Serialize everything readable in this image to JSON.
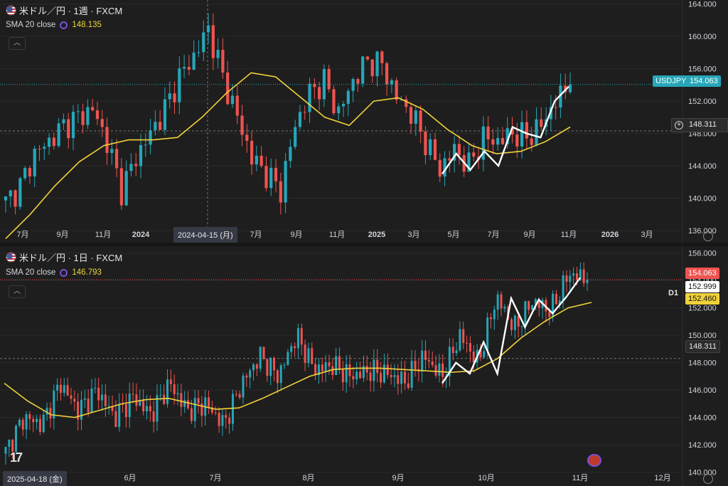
{
  "top_chart": {
    "title": "米ドル／円 · 1週 · FXCM",
    "indicator_label": "SMA 20 close",
    "indicator_value": "148.135",
    "symbol_tag": "USDJPY",
    "last_price": "154.063",
    "crosshair_price": "148.311",
    "crosshair_date": "2024-04-15 (月)"
  },
  "bottom_chart": {
    "title": "米ドル／円 · 1日 · FXCM",
    "indicator_label": "SMA 20 close",
    "indicator_value": "146.793",
    "last_price": "154.063",
    "prev_price": "152.999",
    "sma_price": "152.460",
    "crosshair_price": "148.311",
    "crosshair_date": "2025-04-18 (金)",
    "timeframe_label": "D1"
  },
  "colors": {
    "up": "#26a6b8",
    "down": "#ef5350",
    "sma": "#f1d23a",
    "zigzag": "#ffffff",
    "background": "#1e1e1e",
    "grid": "#2a2a2a",
    "text": "#d1d4dc"
  },
  "icons": [
    "us-flag-icon",
    "eye-icon",
    "collapse-chevron-icon",
    "settings-gear-icon",
    "tradingview-logo-icon",
    "plus-circle-icon"
  ],
  "chart_data": [
    {
      "type": "candlestick",
      "title": "米ドル／円 · 1週 · FXCM",
      "ylim": [
        134.5,
        164.5
      ],
      "y_ticks": [
        "164.000",
        "160.000",
        "156.000",
        "152.000",
        "148.000",
        "144.000",
        "140.000",
        "136.000"
      ],
      "x_ticks": [
        "7月",
        "9月",
        "11月",
        "2024",
        "2024-04-15 (月)",
        "7月",
        "9月",
        "11月",
        "2025",
        "3月",
        "5月",
        "7月",
        "9月",
        "11月",
        "2026",
        "3月"
      ],
      "series": [
        {
          "name": "SMA 20 close",
          "values": [
            135.0,
            138.0,
            141.5,
            144.5,
            146.5,
            147.2,
            147.2,
            147.5,
            150.0,
            153.0,
            155.5,
            155.0,
            152.5,
            150.0,
            149.0,
            152.0,
            152.4,
            151.0,
            148.5,
            146.5,
            145.5,
            145.8,
            147.0,
            148.8
          ]
        }
      ],
      "zigzag": [
        143.0,
        145.5,
        143.5,
        145.8,
        144.0,
        148.8,
        148.0,
        147.5,
        152.0,
        153.8
      ],
      "candle_path": [
        139.5,
        141.5,
        145.5,
        147.0,
        149.0,
        150.0,
        151.0,
        147.0,
        141.0,
        145.0,
        148.0,
        151.0,
        155.0,
        157.5,
        161.0,
        155.0,
        150.0,
        145.0,
        143.0,
        141.0,
        149.0,
        153.0,
        154.5,
        150.5,
        154.5,
        157.0,
        156.5,
        152.5,
        150.5,
        147.0,
        143.5,
        146.0,
        144.0,
        147.5,
        147.0,
        148.0,
        147.5,
        149.0,
        152.0,
        154.06
      ]
    },
    {
      "type": "candlestick",
      "title": "米ドル／円 · 1日 · FXCM",
      "ylim": [
        139.0,
        156.5
      ],
      "y_ticks": [
        "156.000",
        "154.000",
        "152.000",
        "150.000",
        "148.000",
        "146.000",
        "144.000",
        "142.000",
        "140.000"
      ],
      "x_ticks": [
        "2025-04-18 (金)",
        "6月",
        "7月",
        "8月",
        "9月",
        "10月",
        "11月",
        "12月"
      ],
      "series": [
        {
          "name": "SMA 20 close",
          "values": [
            146.5,
            145.2,
            144.2,
            144.0,
            144.5,
            145.0,
            145.3,
            145.4,
            145.0,
            144.6,
            144.7,
            145.4,
            146.2,
            147.0,
            147.5,
            147.6,
            147.6,
            147.5,
            147.4,
            147.3,
            147.4,
            148.3,
            149.8,
            151.0,
            152.0,
            152.4
          ]
        }
      ],
      "zigzag": [
        146.5,
        148.0,
        147.2,
        149.5,
        147.2,
        152.7,
        150.6,
        152.6,
        151.6,
        152.8,
        154.2
      ],
      "candle_path": [
        141.5,
        144.0,
        143.5,
        146.5,
        144.5,
        146.0,
        144.0,
        145.5,
        144.2,
        146.5,
        144.5,
        145.0,
        143.5,
        146.5,
        148.5,
        147.0,
        150.0,
        147.5,
        147.8,
        147.0,
        147.4,
        147.2,
        146.6,
        148.5,
        147.0,
        150.0,
        148.0,
        152.8,
        150.5,
        152.5,
        151.8,
        154.5,
        154.06
      ]
    }
  ]
}
